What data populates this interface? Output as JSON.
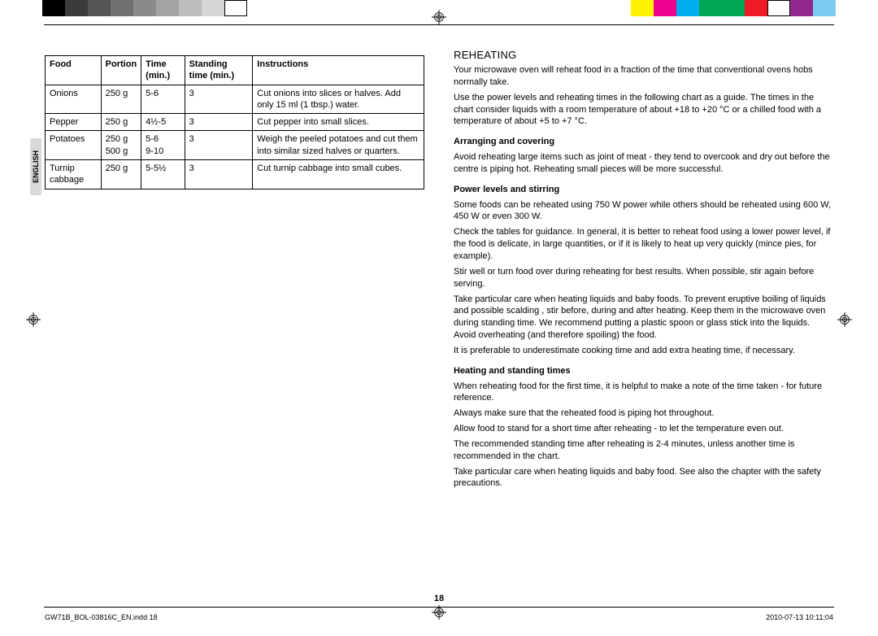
{
  "color_bars": {
    "left": [
      "#000000",
      "#3b3b3b",
      "#555555",
      "#707070",
      "#8a8a8a",
      "#a3a3a3",
      "#bcbcbc",
      "#d6d6d6",
      "#ffffff"
    ],
    "right": [
      "#fff200",
      "#ec008c",
      "#00aeef",
      "#00a651",
      "#00a651",
      "#ed1c24",
      "#ffffff",
      "#92278f",
      "#7cccf3"
    ]
  },
  "side_tab": "ENGLISH",
  "table": {
    "headers": [
      "Food",
      "Portion",
      "Time (min.)",
      "Standing time (min.)",
      "Instructions"
    ],
    "rows": [
      {
        "food": "Onions",
        "portion": "250 g",
        "time": "5-6",
        "standing": "3",
        "instructions": "Cut onions into slices or halves. Add only 15 ml (1 tbsp.) water."
      },
      {
        "food": "Pepper",
        "portion": "250 g",
        "time": "4½-5",
        "standing": "3",
        "instructions": "Cut pepper into small slices."
      },
      {
        "food": "Potatoes",
        "portion": "250 g\n500 g",
        "time": "5-6\n9-10",
        "standing": "3",
        "instructions": "Weigh the peeled potatoes and cut them into similar sized halves or quarters."
      },
      {
        "food": "Turnip cabbage",
        "portion": "250 g",
        "time": "5-5½",
        "standing": "3",
        "instructions": "Cut turnip cabbage into small cubes."
      }
    ]
  },
  "right": {
    "title": "REHEATING",
    "intro1": "Your microwave oven will reheat food in a fraction of the time that conventional ovens hobs normally take.",
    "intro2": "Use the power levels and reheating times in the following chart as a guide. The times in the chart consider liquids with a room temperature of about +18 to +20 °C or a chilled food with a temperature of about +5 to +7 °C.",
    "h1": "Arranging and covering",
    "p1": "Avoid reheating large items such as joint of meat - they tend to overcook and dry out before the centre is piping hot. Reheating small pieces will be more successful.",
    "h2": "Power levels and stirring",
    "p2a": "Some foods can be reheated using 750 W power while others should be reheated using 600 W, 450 W or even 300 W.",
    "p2b": "Check the tables for guidance. In general, it is better to reheat food using a lower power level, if the food is delicate, in large quantities, or if it is likely to heat up very quickly (mince pies, for example).",
    "p2c": "Stir well or turn food over during reheating for best results. When possible, stir again before serving.",
    "p2d": "Take particular care when heating liquids and baby foods. To prevent eruptive boiling of liquids and possible scalding , stir before, during and after heating. Keep them in the microwave oven during standing time. We recommend putting a plastic spoon or glass stick into the liquids. Avoid overheating (and therefore spoiling) the food.",
    "p2e": "It is preferable to underestimate cooking time and add extra heating time, if necessary.",
    "h3": "Heating and standing times",
    "p3a": "When reheating food for the first time, it is helpful to make a note of the time taken - for future reference.",
    "p3b": "Always make sure that the reheated food is piping hot throughout.",
    "p3c": "Allow food to stand for a short time after reheating - to let the temperature even out.",
    "p3d": "The recommended standing time after reheating is 2-4 minutes, unless another time is recommended in the chart.",
    "p3e": "Take particular care when heating liquids and baby food. See also the chapter with the safety precautions."
  },
  "page_number": "18",
  "footer_left": "GW71B_BOL-03816C_EN.indd   18",
  "footer_right": "2010-07-13   10:11:04"
}
